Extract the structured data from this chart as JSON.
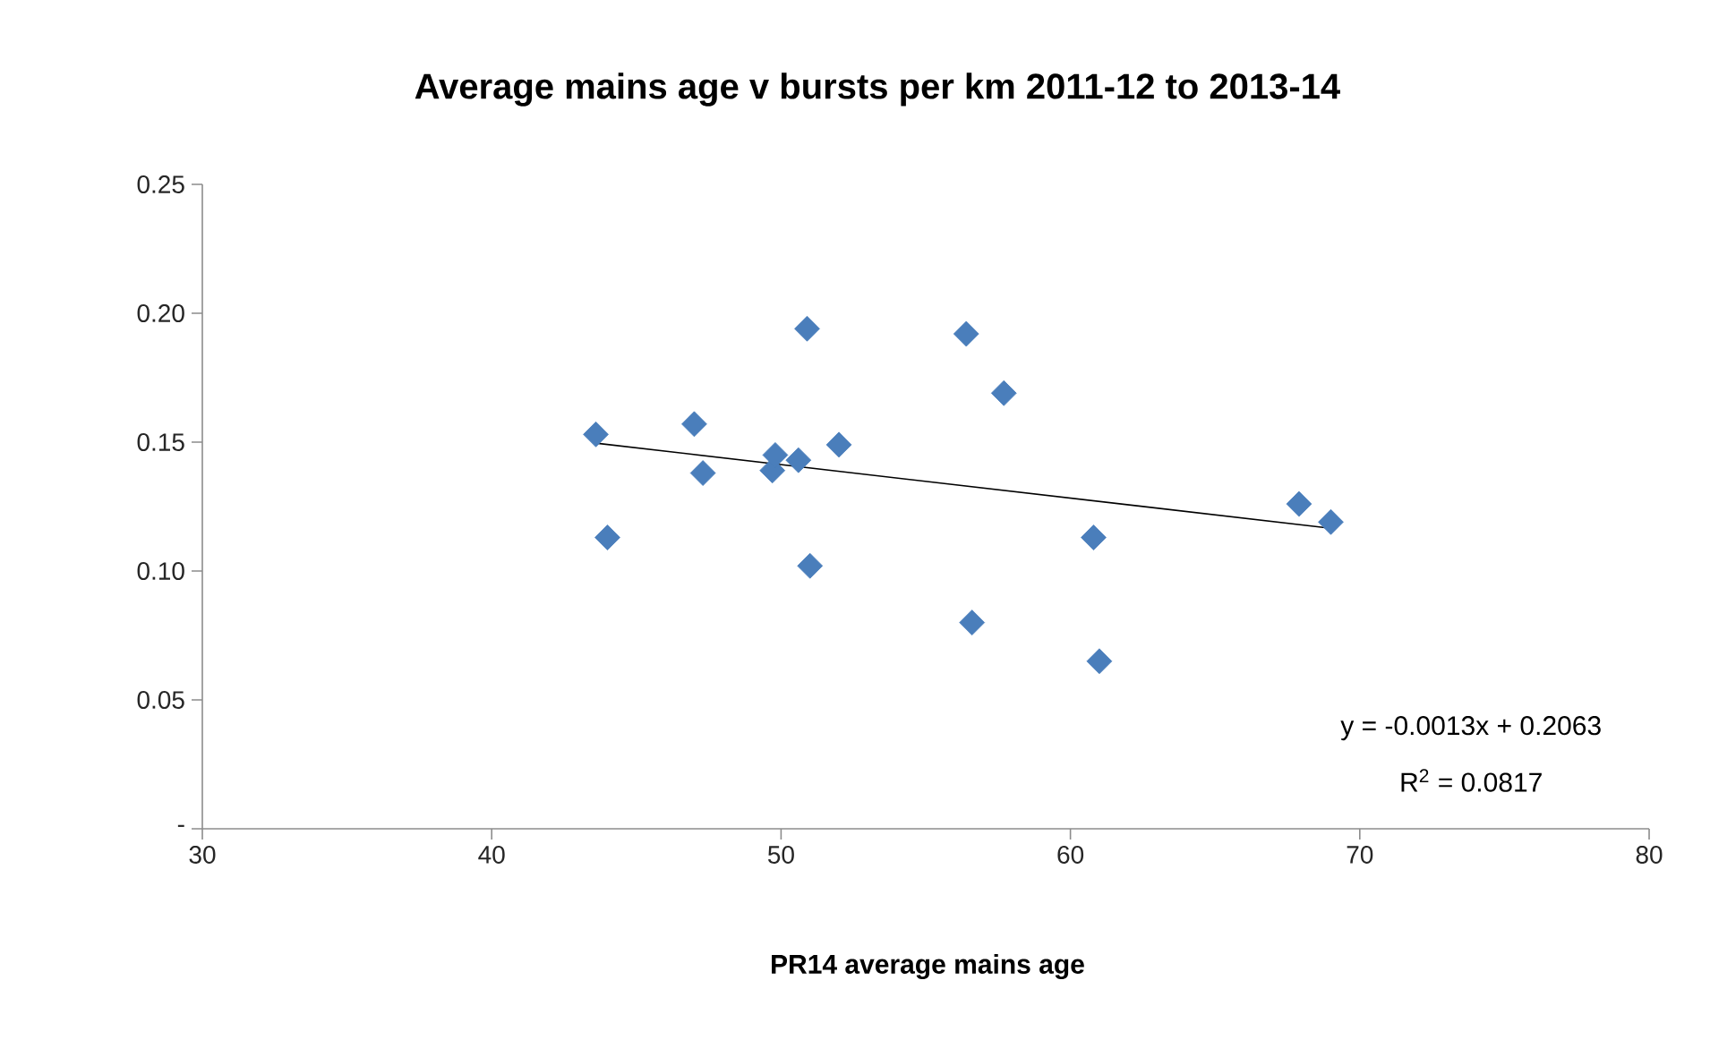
{
  "chart_data": {
    "type": "scatter",
    "title": "Average mains age v bursts per km 2011-12 to 2013-14",
    "xlabel": "PR14 average mains age",
    "xlim": [
      30,
      80
    ],
    "xticks": [
      30,
      40,
      50,
      60,
      70,
      80
    ],
    "ylim": [
      0,
      0.25
    ],
    "yticks": [
      {
        "value": 0,
        "label": "-"
      },
      {
        "value": 0.05,
        "label": "0.05"
      },
      {
        "value": 0.1,
        "label": "0.10"
      },
      {
        "value": 0.15,
        "label": "0.15"
      },
      {
        "value": 0.2,
        "label": "0.20"
      },
      {
        "value": 0.25,
        "label": "0.25"
      }
    ],
    "grid": false,
    "marker": "diamond",
    "series": [
      {
        "color": "#4a7ebb",
        "x": [
          43.6,
          44.0,
          47.0,
          47.3,
          49.7,
          49.8,
          50.6,
          50.9,
          51.0,
          52.0,
          56.4,
          56.6,
          57.7,
          60.8,
          61.0,
          67.9,
          69.0
        ],
        "values": [
          0.153,
          0.113,
          0.157,
          0.138,
          0.139,
          0.145,
          0.143,
          0.194,
          0.102,
          0.149,
          0.192,
          0.08,
          0.169,
          0.113,
          0.065,
          0.126,
          0.119
        ]
      },
      {
        "type": "line",
        "color": "#000000",
        "marker": "none",
        "x": [
          43.6,
          69.0
        ],
        "values": [
          0.1496,
          0.1166
        ]
      }
    ],
    "annotations": [
      "y = -0.0013x + 0.2063",
      "R$^{2}$ = 0.0817"
    ]
  }
}
